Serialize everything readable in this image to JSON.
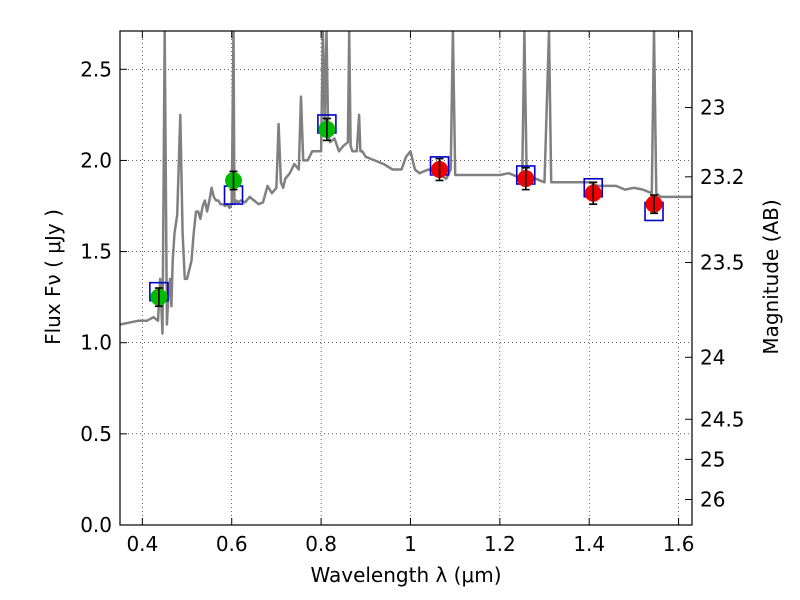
{
  "chart_data": {
    "type": "scatter",
    "xlabel": "Wavelength  λ (μm)",
    "ylabel": "Flux  Fν  ( μJy )",
    "y2label": "Magnitude (AB)",
    "xlim": [
      0.35,
      1.63
    ],
    "ylim": [
      0.0,
      2.71
    ],
    "grid": true,
    "x_ticks": [
      {
        "value": 0.4,
        "label": "0.4"
      },
      {
        "value": 0.6,
        "label": "0.6"
      },
      {
        "value": 0.8,
        "label": "0.8"
      },
      {
        "value": 1.0,
        "label": "1"
      },
      {
        "value": 1.2,
        "label": "1.2"
      },
      {
        "value": 1.4,
        "label": "1.4"
      },
      {
        "value": 1.6,
        "label": "1.6"
      }
    ],
    "y_ticks": [
      {
        "value": 0.0,
        "label": "0.0"
      },
      {
        "value": 0.5,
        "label": "0.5"
      },
      {
        "value": 1.0,
        "label": "1.0"
      },
      {
        "value": 1.5,
        "label": "1.5"
      },
      {
        "value": 2.0,
        "label": "2.0"
      },
      {
        "value": 2.5,
        "label": "2.5"
      }
    ],
    "y2_ticks": [
      {
        "flux": 2.29,
        "label": "23"
      },
      {
        "flux": 1.91,
        "label": "23.2"
      },
      {
        "flux": 1.44,
        "label": "23.5"
      },
      {
        "flux": 0.92,
        "label": "24"
      },
      {
        "flux": 0.58,
        "label": "24.5"
      },
      {
        "flux": 0.36,
        "label": "25"
      },
      {
        "flux": 0.14,
        "label": "26"
      }
    ],
    "series": [
      {
        "kind": "line",
        "color": "#808080",
        "x": [
          0.35,
          0.37,
          0.39,
          0.41,
          0.425,
          0.435,
          0.44,
          0.445,
          0.45,
          0.455,
          0.458,
          0.462,
          0.465,
          0.468,
          0.472,
          0.478,
          0.485,
          0.49,
          0.495,
          0.5,
          0.505,
          0.51,
          0.515,
          0.52,
          0.525,
          0.53,
          0.535,
          0.54,
          0.545,
          0.55,
          0.555,
          0.56,
          0.565,
          0.57,
          0.575,
          0.58,
          0.585,
          0.59,
          0.595,
          0.6,
          0.604,
          0.606,
          0.61,
          0.615,
          0.62,
          0.63,
          0.64,
          0.65,
          0.66,
          0.67,
          0.68,
          0.69,
          0.7,
          0.705,
          0.71,
          0.715,
          0.72,
          0.73,
          0.74,
          0.75,
          0.755,
          0.76,
          0.77,
          0.78,
          0.79,
          0.8,
          0.804,
          0.808,
          0.812,
          0.816,
          0.82,
          0.83,
          0.84,
          0.85,
          0.86,
          0.863,
          0.866,
          0.87,
          0.88,
          0.885,
          0.888,
          0.892,
          0.9,
          0.92,
          0.94,
          0.96,
          0.98,
          0.99,
          1.0,
          1.01,
          1.02,
          1.04,
          1.06,
          1.08,
          1.09,
          1.095,
          1.1,
          1.12,
          1.14,
          1.16,
          1.18,
          1.2,
          1.22,
          1.25,
          1.255,
          1.26,
          1.28,
          1.3,
          1.31,
          1.315,
          1.32,
          1.34,
          1.36,
          1.38,
          1.4,
          1.42,
          1.44,
          1.46,
          1.48,
          1.5,
          1.52,
          1.54,
          1.545,
          1.55,
          1.56,
          1.58,
          1.6,
          1.63
        ],
        "y": [
          1.1,
          1.11,
          1.12,
          1.12,
          1.14,
          1.12,
          1.35,
          1.05,
          3.0,
          1.1,
          1.25,
          1.35,
          1.2,
          1.45,
          1.6,
          1.7,
          2.25,
          1.6,
          1.35,
          1.35,
          1.4,
          1.45,
          1.6,
          1.72,
          1.72,
          1.68,
          1.75,
          1.78,
          1.72,
          1.78,
          1.85,
          1.8,
          1.78,
          1.78,
          1.76,
          1.76,
          1.75,
          1.76,
          1.74,
          1.76,
          3.0,
          1.76,
          1.78,
          1.77,
          1.78,
          1.77,
          1.8,
          1.78,
          1.76,
          1.77,
          1.86,
          1.82,
          1.85,
          2.2,
          1.88,
          1.85,
          1.9,
          1.93,
          1.98,
          1.95,
          2.35,
          2.0,
          2.0,
          2.05,
          2.05,
          2.05,
          3.0,
          2.2,
          3.0,
          2.15,
          2.1,
          2.12,
          2.05,
          2.08,
          2.1,
          3.0,
          2.08,
          2.05,
          2.05,
          2.25,
          2.05,
          2.05,
          2.02,
          2.0,
          1.98,
          1.95,
          1.95,
          2.02,
          2.05,
          1.95,
          1.93,
          1.95,
          1.93,
          1.9,
          1.95,
          3.0,
          1.92,
          1.92,
          1.92,
          1.92,
          1.92,
          1.92,
          1.93,
          1.9,
          3.0,
          1.9,
          1.9,
          1.88,
          3.0,
          1.88,
          1.88,
          1.88,
          1.88,
          1.88,
          1.88,
          1.86,
          1.86,
          1.86,
          1.84,
          1.85,
          1.84,
          1.82,
          3.0,
          1.82,
          1.8,
          1.8,
          1.8,
          1.8
        ]
      },
      {
        "kind": "model-boxes",
        "color": "#0000cc",
        "x": [
          0.437,
          0.604,
          0.813,
          1.065,
          1.258,
          1.409,
          1.545
        ],
        "y": [
          1.28,
          1.81,
          2.2,
          1.97,
          1.92,
          1.85,
          1.72
        ]
      },
      {
        "kind": "points",
        "color": "#00bb00",
        "x": [
          0.437,
          0.604,
          0.813
        ],
        "y": [
          1.25,
          1.89,
          2.17
        ],
        "yerr": [
          0.05,
          0.05,
          0.06
        ]
      },
      {
        "kind": "points",
        "color": "#ee0000",
        "x": [
          1.065,
          1.258,
          1.409,
          1.545
        ],
        "y": [
          1.95,
          1.9,
          1.82,
          1.76
        ],
        "yerr": [
          0.06,
          0.06,
          0.06,
          0.05
        ]
      }
    ]
  }
}
